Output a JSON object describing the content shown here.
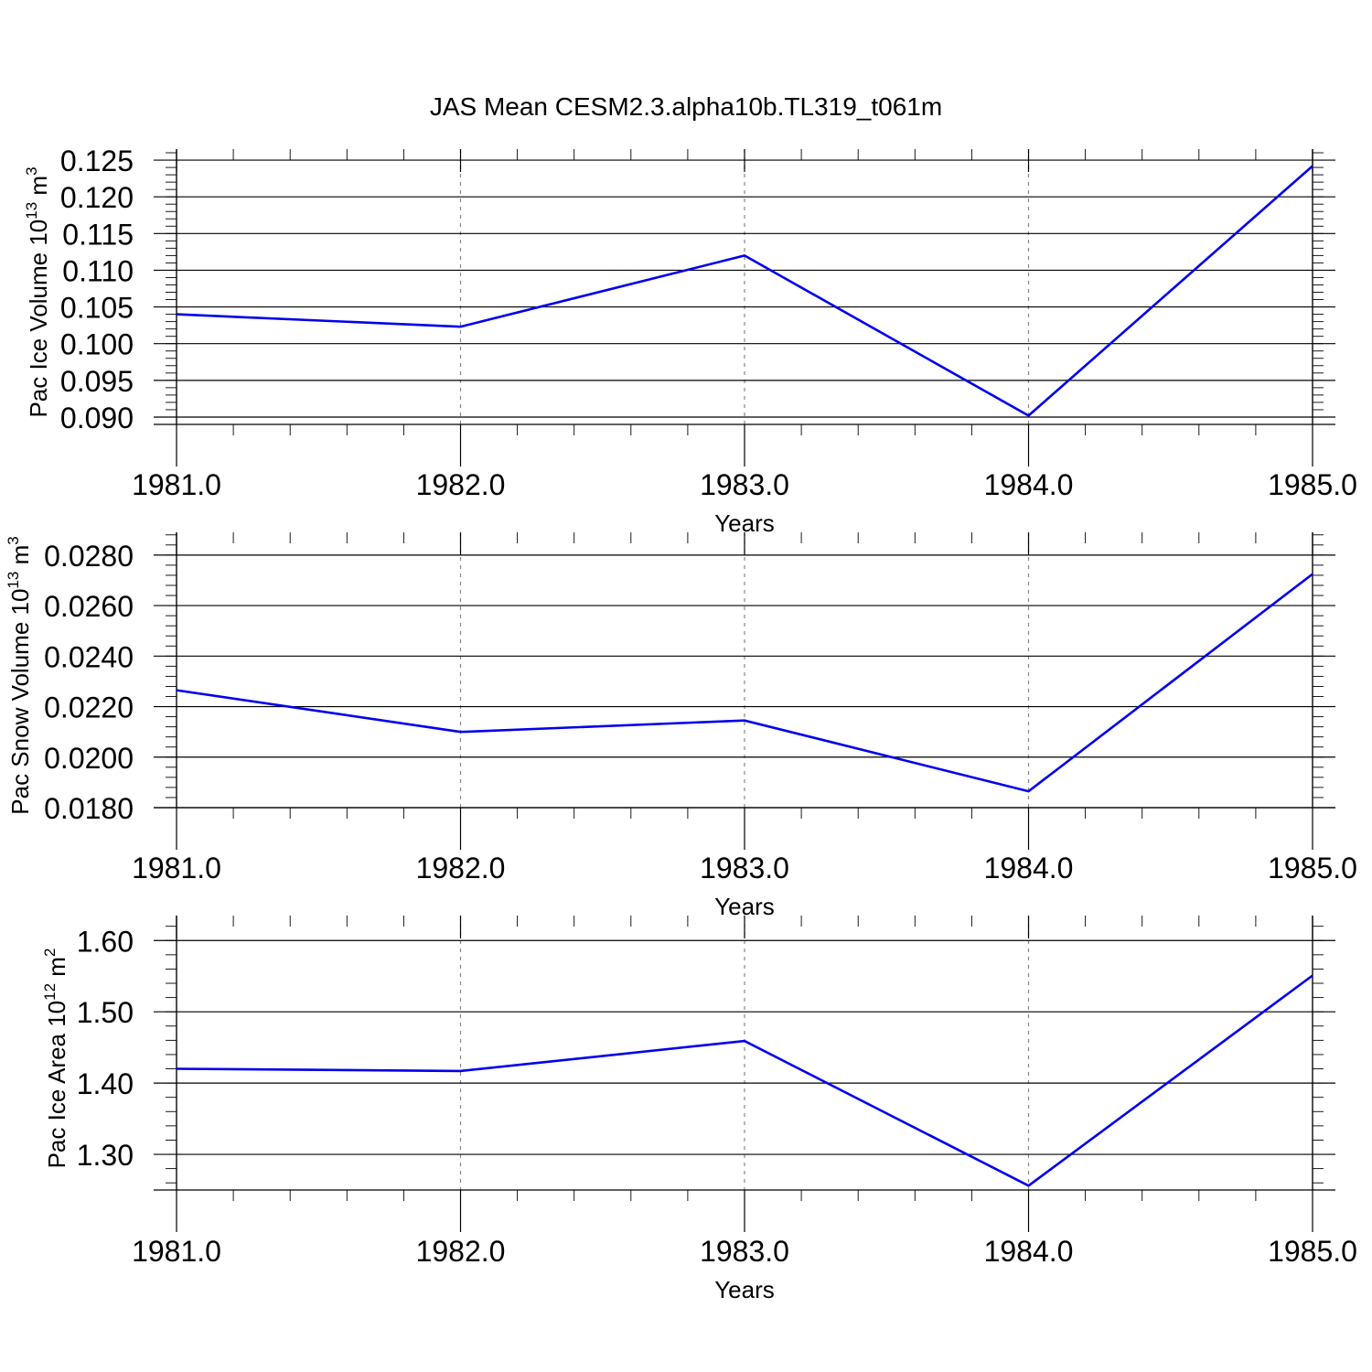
{
  "figure": {
    "title": "JAS Mean CESM2.3.alpha10b.TL319_t061m"
  },
  "colors": {
    "series": "#0000ee",
    "axis": "#000000",
    "grid": "#888888"
  },
  "chart_data": [
    {
      "type": "line",
      "ylabel": {
        "text": "Pac Ice Volume 10",
        "sup": "13",
        "unit": " m",
        "unit_sup": "3"
      },
      "xlabel": "Years",
      "x": [
        1981,
        1982,
        1983,
        1984,
        1985
      ],
      "y": [
        0.104,
        0.1023,
        0.112,
        0.0902,
        0.1242
      ],
      "xlim": [
        1981,
        1985
      ],
      "ylim": [
        0.089,
        0.1265
      ],
      "xticks": [
        1981,
        1982,
        1983,
        1984,
        1985
      ],
      "xtick_labels": [
        "1981.0",
        "1982.0",
        "1983.0",
        "1984.0",
        "1985.0"
      ],
      "yticks": [
        0.09,
        0.095,
        0.1,
        0.105,
        0.11,
        0.115,
        0.12,
        0.125
      ],
      "ytick_labels": [
        "0.090",
        "0.095",
        "0.100",
        "0.105",
        "0.110",
        "0.115",
        "0.120",
        "0.125"
      ],
      "grid": "vertical-dashed"
    },
    {
      "type": "line",
      "ylabel": {
        "text": "Pac Snow Volume 10",
        "sup": "13",
        "unit": " m",
        "unit_sup": "3"
      },
      "xlabel": "Years",
      "x": [
        1981,
        1982,
        1983,
        1984,
        1985
      ],
      "y": [
        0.02265,
        0.021,
        0.02145,
        0.01865,
        0.02725
      ],
      "xlim": [
        1981,
        1985
      ],
      "ylim": [
        0.018,
        0.0289
      ],
      "xticks": [
        1981,
        1982,
        1983,
        1984,
        1985
      ],
      "xtick_labels": [
        "1981.0",
        "1982.0",
        "1983.0",
        "1984.0",
        "1985.0"
      ],
      "yticks": [
        0.018,
        0.02,
        0.022,
        0.024,
        0.026,
        0.028
      ],
      "ytick_labels": [
        "0.0180",
        "0.0200",
        "0.0220",
        "0.0240",
        "0.0260",
        "0.0280"
      ],
      "grid": "vertical-dashed"
    },
    {
      "type": "line",
      "ylabel": {
        "text": "Pac Ice Area 10",
        "sup": "12",
        "unit": " m",
        "unit_sup": "2"
      },
      "xlabel": "Years",
      "x": [
        1981,
        1982,
        1983,
        1984,
        1985
      ],
      "y": [
        1.42,
        1.417,
        1.459,
        1.256,
        1.551
      ],
      "xlim": [
        1981,
        1985
      ],
      "ylim": [
        1.25,
        1.635
      ],
      "xticks": [
        1981,
        1982,
        1983,
        1984,
        1985
      ],
      "xtick_labels": [
        "1981.0",
        "1982.0",
        "1983.0",
        "1984.0",
        "1985.0"
      ],
      "yticks": [
        1.3,
        1.4,
        1.5,
        1.6
      ],
      "ytick_labels": [
        "1.30",
        "1.40",
        "1.50",
        "1.60"
      ],
      "grid": "vertical-dashed"
    }
  ]
}
